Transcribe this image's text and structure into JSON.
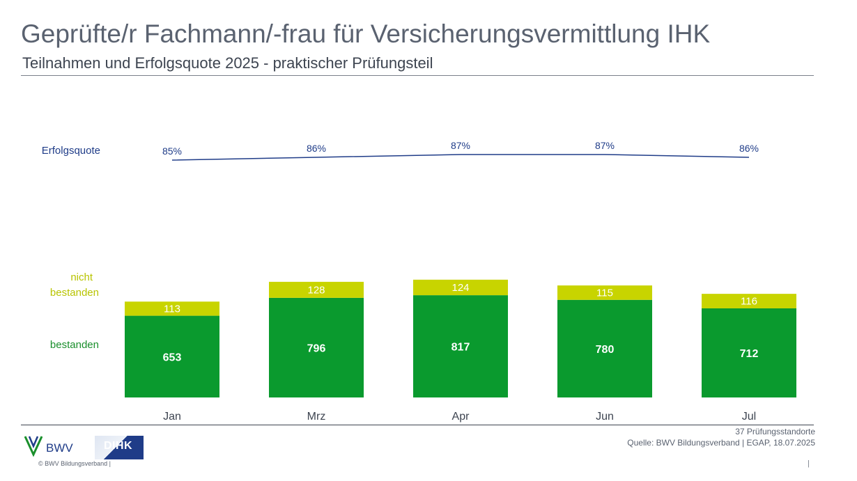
{
  "header": {
    "title": "Geprüfte/r Fachmann/-frau für Versicherungsvermittlung IHK",
    "subtitle": "Teilnahmen und Erfolgsquote 2025 - praktischer Prüfungsteil"
  },
  "chart_data": {
    "type": "bar",
    "stacked": true,
    "categories": [
      "Jan",
      "Mrz",
      "Apr",
      "Jun",
      "Jul"
    ],
    "series": [
      {
        "name": "bestanden",
        "values": [
          653,
          796,
          817,
          780,
          712
        ],
        "color": "#0a9a2e"
      },
      {
        "name": "nicht bestanden",
        "values": [
          113,
          128,
          124,
          115,
          116
        ],
        "color": "#c8d400"
      }
    ],
    "line": {
      "name": "Erfolgsquote",
      "values": [
        85,
        86,
        87,
        87,
        86
      ],
      "labels": [
        "85%",
        "86%",
        "87%",
        "87%",
        "86%"
      ],
      "color": "#1f3c88"
    },
    "legend_labels": {
      "fail_line1": "nicht",
      "fail_line2": "bestanden",
      "pass": "bestanden"
    },
    "title": "",
    "xlabel": "",
    "ylabel": "",
    "grid": false,
    "legend_placement": "left"
  },
  "footer": {
    "note": "37 Prüfungsstandorte",
    "source": "Quelle: BWV Bildungsverband | EGAP, 18.07.2025",
    "copyright": "©  BWV Bildungsverband  |",
    "page_mark": "|",
    "bwv_logo_text": "BWV",
    "dihk_logo_text": "DIHK"
  }
}
